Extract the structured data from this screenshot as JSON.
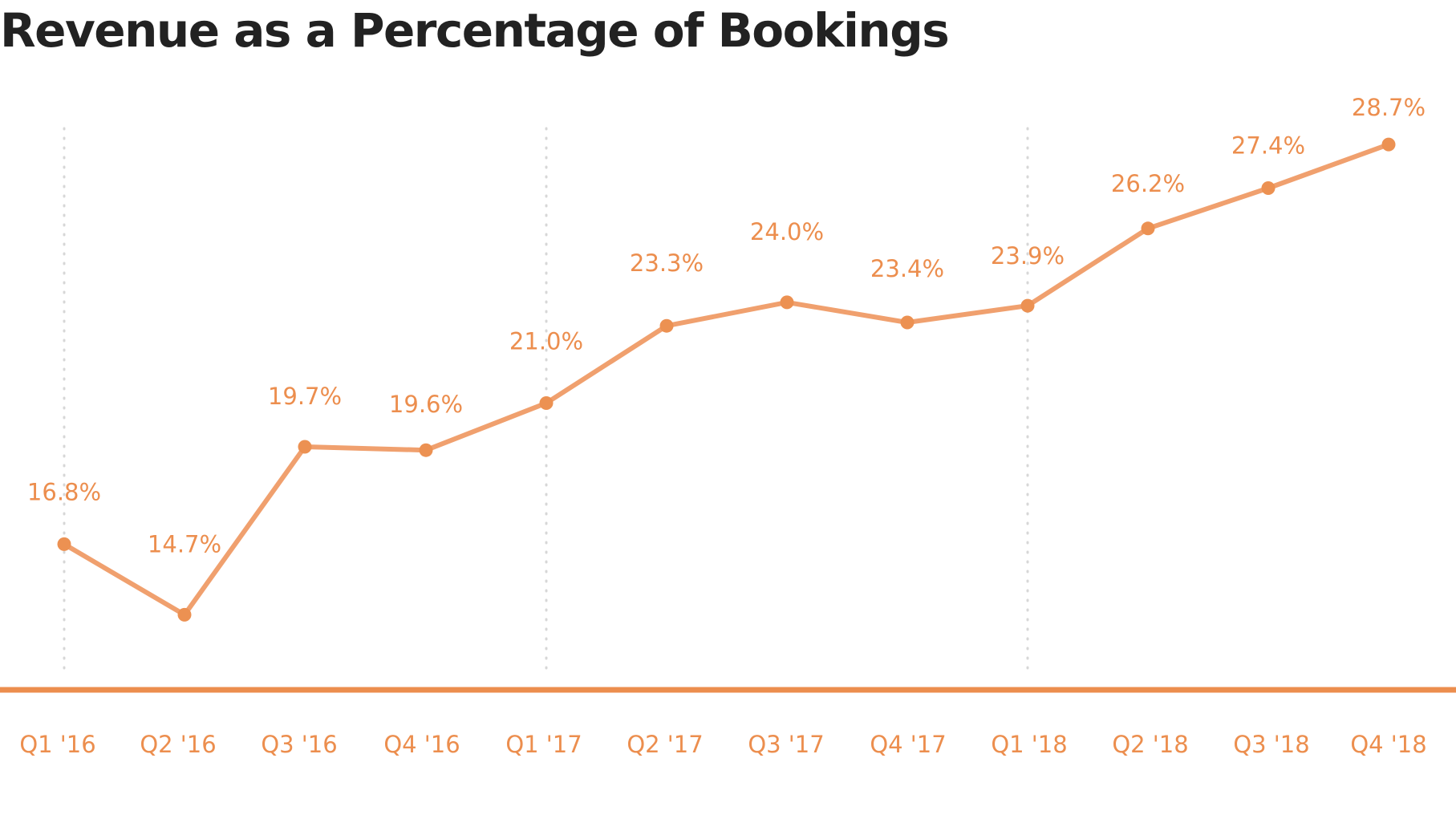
{
  "chart_data": {
    "type": "line",
    "title": "Revenue as a Percentage of Bookings",
    "xlabel": "",
    "ylabel": "",
    "categories": [
      "Q1 '16",
      "Q2 '16",
      "Q3 '16",
      "Q4 '16",
      "Q1 '17",
      "Q2 '17",
      "Q3 '17",
      "Q4 '17",
      "Q1 '18",
      "Q2 '18",
      "Q3 '18",
      "Q4 '18"
    ],
    "series": [
      {
        "values": [
          16.8,
          14.7,
          19.7,
          19.6,
          21.0,
          23.3,
          24.0,
          23.4,
          23.9,
          26.2,
          27.4,
          28.7
        ],
        "labels": [
          "16.8%",
          "14.7%",
          "19.7%",
          "19.6%",
          "21.0%",
          "23.3%",
          "24.0%",
          "23.4%",
          "23.9%",
          "26.2%",
          "27.4%",
          "28.7%"
        ]
      }
    ],
    "ylim": [
      8.5,
      33
    ],
    "grid": "vertical dotted lines at Q1 '16, Q1 '17, Q1 '18",
    "legend": "none",
    "colors": {
      "line": "#F0A06E",
      "marker": "#EC9152",
      "labels": "#EC8E4E",
      "baseline": "#EC8E4E",
      "grid": "#d7d7d7",
      "title": "#222222"
    }
  }
}
